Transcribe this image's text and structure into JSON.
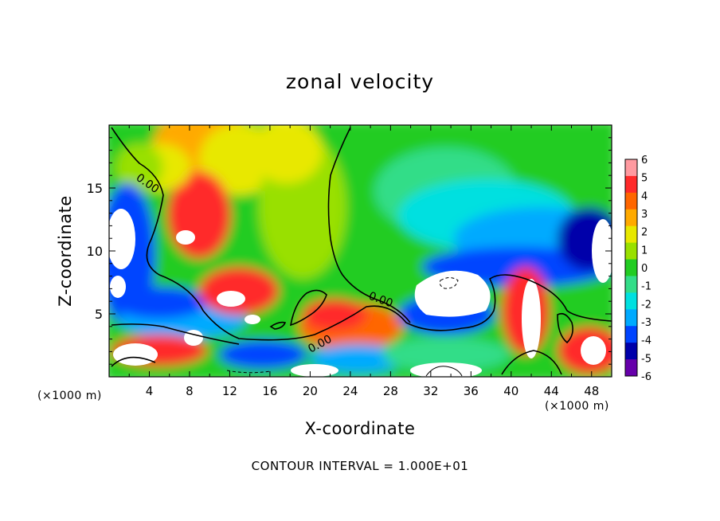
{
  "chart_data": {
    "type": "heatmap",
    "title": "zonal velocity",
    "xlabel": "X-coordinate",
    "ylabel": "Z-coordinate",
    "x_unit_label": "(×1000 m)",
    "x_ticks": [
      4,
      8,
      12,
      16,
      20,
      24,
      28,
      32,
      36,
      40,
      44,
      48
    ],
    "y_ticks": [
      5,
      10,
      15
    ],
    "xlim": [
      0,
      50
    ],
    "ylim": [
      0,
      20
    ],
    "colorbar": {
      "ticks": [
        "6",
        "5",
        "4",
        "3",
        "2",
        "1",
        "0",
        "-1",
        "-2",
        "-3",
        "-4",
        "-5",
        "-6"
      ],
      "colors": [
        "#ff9aa0",
        "#ff2a2a",
        "#ff6600",
        "#ffaa00",
        "#e8e800",
        "#99e000",
        "#22cc22",
        "#33dd88",
        "#00e0e0",
        "#00aaff",
        "#0044ff",
        "#0000aa",
        "#6600aa"
      ]
    },
    "contour_labels": [
      "0.00",
      "0.00",
      "0.00"
    ],
    "contour_interval_text": "CONTOUR INTERVAL = 1.000E+01"
  }
}
